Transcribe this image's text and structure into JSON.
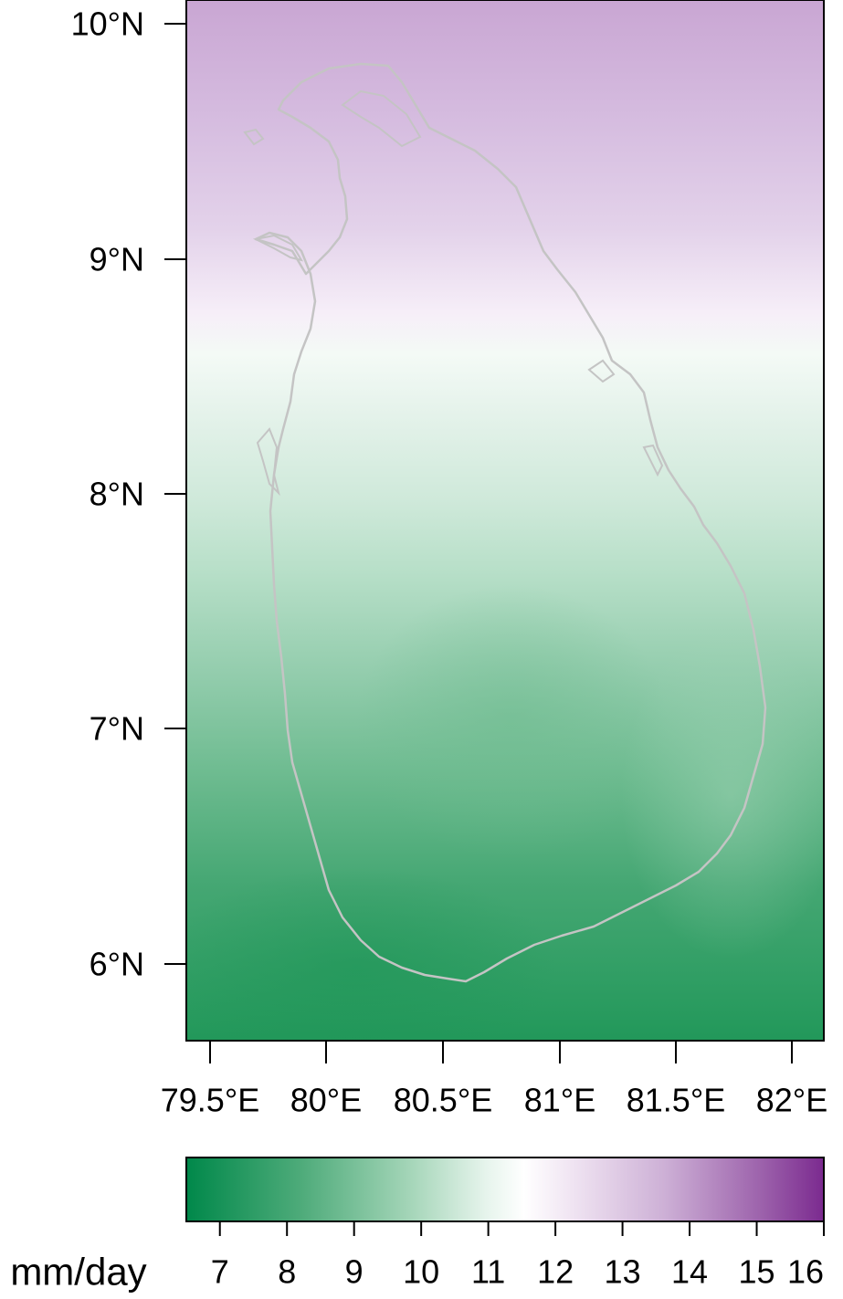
{
  "map": {
    "lat_labels": [
      "10°N",
      "9°N",
      "8°N",
      "7°N",
      "6°N"
    ],
    "lon_labels": [
      "79.5°E",
      "80°E",
      "80.5°E",
      "81°E",
      "81.5°E",
      "82°E"
    ],
    "colors": {
      "low": "#00884a",
      "mid": "#ffffff",
      "high": "#7b2a8f",
      "outline": "#c4c4c4"
    }
  },
  "colorbar": {
    "unit_label": "mm/day",
    "tick_labels": [
      "7",
      "8",
      "9",
      "10",
      "11",
      "12",
      "13",
      "14",
      "15",
      "16"
    ],
    "range": [
      6.5,
      16
    ]
  }
}
